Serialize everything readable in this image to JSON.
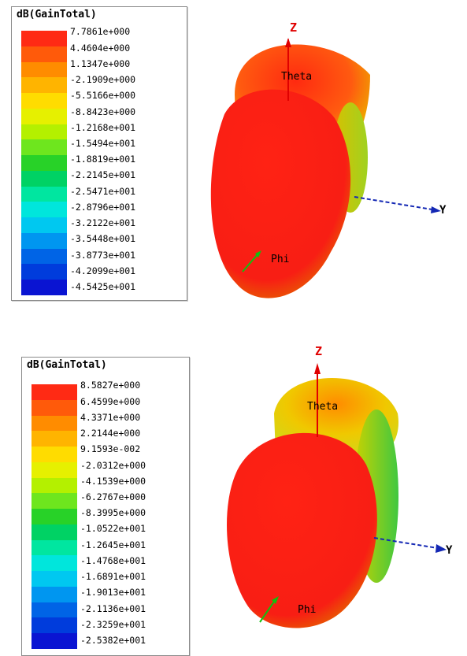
{
  "plots": [
    {
      "legend_title": "dB(GainTotal)",
      "legend_values": [
        "7.7861e+000",
        "4.4604e+000",
        "1.1347e+000",
        "-2.1909e+000",
        "-5.5166e+000",
        "-8.8423e+000",
        "-1.2168e+001",
        "-1.5494e+001",
        "-1.8819e+001",
        "-2.2145e+001",
        "-2.5471e+001",
        "-2.8796e+001",
        "-3.2122e+001",
        "-3.5448e+001",
        "-3.8773e+001",
        "-4.2099e+001",
        "-4.5425e+001"
      ],
      "axes": {
        "z": "Z",
        "y": "Y",
        "theta": "Theta",
        "phi": "Phi"
      }
    },
    {
      "legend_title": "dB(GainTotal)",
      "legend_values": [
        "8.5827e+000",
        "6.4599e+000",
        "4.3371e+000",
        "2.2144e+000",
        "9.1593e-002",
        "-2.0312e+000",
        "-4.1539e+000",
        "-6.2767e+000",
        "-8.3995e+000",
        "-1.0522e+001",
        "-1.2645e+001",
        "-1.4768e+001",
        "-1.6891e+001",
        "-1.9013e+001",
        "-2.1136e+001",
        "-2.3259e+001",
        "-2.5382e+001"
      ],
      "axes": {
        "z": "Z",
        "y": "Y",
        "theta": "Theta",
        "phi": "Phi"
      }
    }
  ],
  "colors": {
    "scale": [
      "#ff2a14",
      "#ff5a0a",
      "#ff8c00",
      "#ffb400",
      "#ffdc00",
      "#e6f000",
      "#b4f000",
      "#6ee61e",
      "#28d228",
      "#00d264",
      "#00e6a0",
      "#00e6dc",
      "#00c8f0",
      "#0096f0",
      "#0064e6",
      "#003cdc",
      "#0a14d2"
    ],
    "z_axis": "#e00000",
    "y_axis": "#1428b4",
    "phi_axis": "#10c010"
  }
}
